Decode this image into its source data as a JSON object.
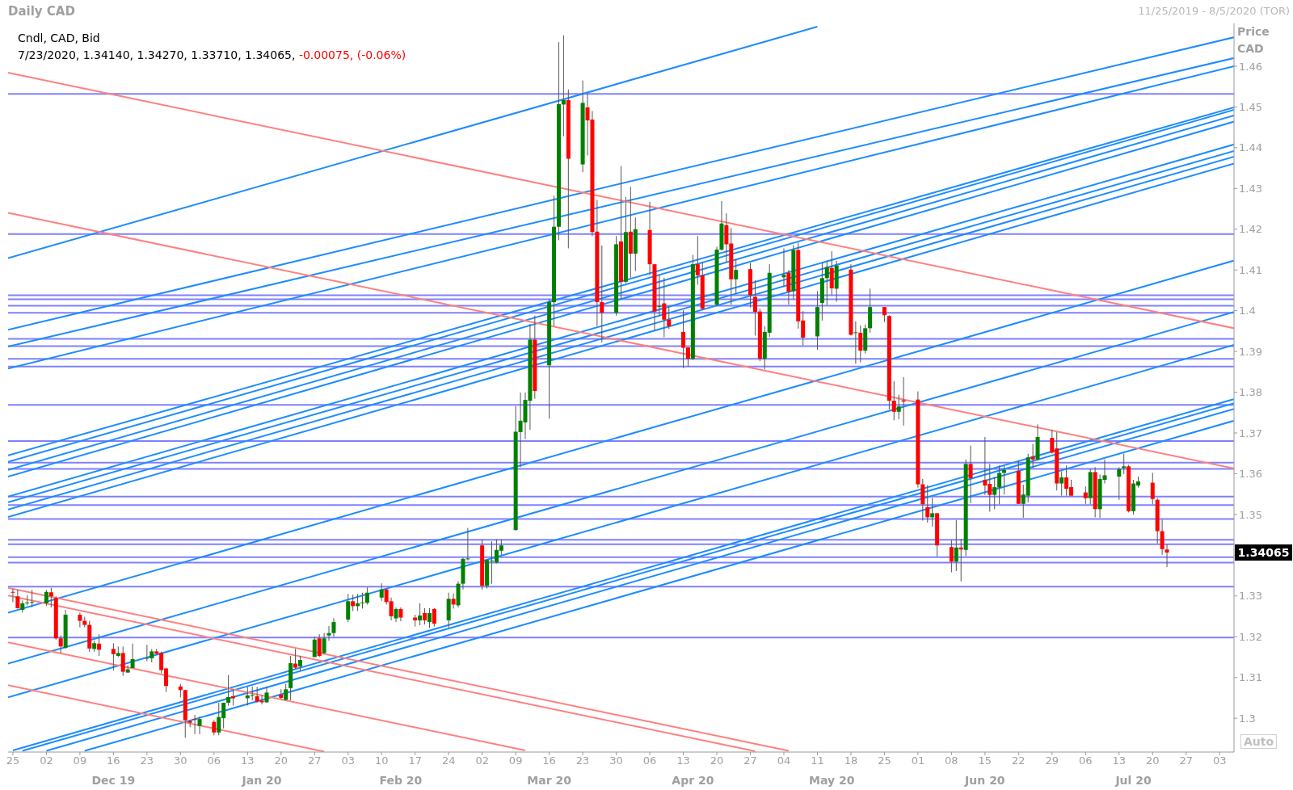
{
  "chart_data": {
    "type": "candlestick",
    "title": "Daily CAD",
    "subtitle": "11/25/2019 - 8/5/2020 (TOR)",
    "ylabel": "Price CAD",
    "annotations": [
      "Cndl, CAD, Bid",
      "7/23/2020, 1.34140, 1.34270, 1.33710, 1.34065,",
      "-0.00075, (-0.06%)",
      "Auto",
      "1.34065"
    ],
    "x": [
      "2019-11-25",
      "2019-11-26",
      "2019-11-27",
      "2019-11-28",
      "2019-11-29",
      "2019-12-02",
      "2019-12-03",
      "2019-12-04",
      "2019-12-05",
      "2019-12-06",
      "2019-12-09",
      "2019-12-10",
      "2019-12-11",
      "2019-12-12",
      "2019-12-13",
      "2019-12-16",
      "2019-12-17",
      "2019-12-18",
      "2019-12-19",
      "2019-12-20",
      "2019-12-23",
      "2019-12-24",
      "2019-12-25",
      "2019-12-26",
      "2019-12-27",
      "2019-12-30",
      "2019-12-31",
      "2020-01-01",
      "2020-01-02",
      "2020-01-03",
      "2020-01-06",
      "2020-01-07",
      "2020-01-08",
      "2020-01-09",
      "2020-01-10",
      "2020-01-13",
      "2020-01-14",
      "2020-01-15",
      "2020-01-16",
      "2020-01-17",
      "2020-01-20",
      "2020-01-21",
      "2020-01-22",
      "2020-01-23",
      "2020-01-24",
      "2020-01-27",
      "2020-01-28",
      "2020-01-29",
      "2020-01-30",
      "2020-01-31",
      "2020-02-03",
      "2020-02-04",
      "2020-02-05",
      "2020-02-06",
      "2020-02-07",
      "2020-02-10",
      "2020-02-11",
      "2020-02-12",
      "2020-02-13",
      "2020-02-14",
      "2020-02-17",
      "2020-02-18",
      "2020-02-19",
      "2020-02-20",
      "2020-02-21",
      "2020-02-24",
      "2020-02-25",
      "2020-02-26",
      "2020-02-27",
      "2020-02-28",
      "2020-03-02",
      "2020-03-03",
      "2020-03-04",
      "2020-03-05",
      "2020-03-06",
      "2020-03-09",
      "2020-03-10",
      "2020-03-11",
      "2020-03-12",
      "2020-03-13",
      "2020-03-16",
      "2020-03-17",
      "2020-03-18",
      "2020-03-19",
      "2020-03-20",
      "2020-03-23",
      "2020-03-24",
      "2020-03-25",
      "2020-03-26",
      "2020-03-27",
      "2020-03-30",
      "2020-03-31",
      "2020-04-01",
      "2020-04-02",
      "2020-04-03",
      "2020-04-06",
      "2020-04-07",
      "2020-04-08",
      "2020-04-09",
      "2020-04-10",
      "2020-04-13",
      "2020-04-14",
      "2020-04-15",
      "2020-04-16",
      "2020-04-17",
      "2020-04-20",
      "2020-04-21",
      "2020-04-22",
      "2020-04-23",
      "2020-04-24",
      "2020-04-27",
      "2020-04-28",
      "2020-04-29",
      "2020-04-30",
      "2020-05-01",
      "2020-05-04",
      "2020-05-05",
      "2020-05-06",
      "2020-05-07",
      "2020-05-08",
      "2020-05-11",
      "2020-05-12",
      "2020-05-13",
      "2020-05-14",
      "2020-05-15",
      "2020-05-18",
      "2020-05-19",
      "2020-05-20",
      "2020-05-21",
      "2020-05-22",
      "2020-05-25",
      "2020-05-26",
      "2020-05-27",
      "2020-05-28",
      "2020-05-29",
      "2020-06-01",
      "2020-06-02",
      "2020-06-03",
      "2020-06-04",
      "2020-06-05",
      "2020-06-08",
      "2020-06-09",
      "2020-06-10",
      "2020-06-11",
      "2020-06-12",
      "2020-06-15",
      "2020-06-16",
      "2020-06-17",
      "2020-06-18",
      "2020-06-19",
      "2020-06-22",
      "2020-06-23",
      "2020-06-24",
      "2020-06-25",
      "2020-06-26",
      "2020-06-29",
      "2020-06-30",
      "2020-07-01",
      "2020-07-02",
      "2020-07-03",
      "2020-07-06",
      "2020-07-07",
      "2020-07-08",
      "2020-07-09",
      "2020-07-10",
      "2020-07-13",
      "2020-07-14",
      "2020-07-15",
      "2020-07-16",
      "2020-07-17",
      "2020-07-20",
      "2020-07-21",
      "2020-07-22",
      "2020-07-23"
    ],
    "ohlc": [
      [
        1.331,
        1.3318,
        1.3285,
        1.3308
      ],
      [
        1.3299,
        1.3315,
        1.3269,
        1.327
      ],
      [
        1.3266,
        1.3289,
        1.3259,
        1.3282
      ],
      [
        1.3283,
        1.3302,
        1.3277,
        1.3284
      ],
      [
        1.3283,
        1.3315,
        1.3272,
        1.3285
      ],
      [
        1.3282,
        1.3315,
        1.3276,
        1.331
      ],
      [
        1.3309,
        1.332,
        1.3272,
        1.3299
      ],
      [
        1.3295,
        1.3299,
        1.3193,
        1.3196
      ],
      [
        1.3196,
        1.3203,
        1.316,
        1.3176
      ],
      [
        1.3173,
        1.3266,
        1.317,
        1.3254
      ],
      [
        1.3254,
        1.3259,
        1.3223,
        1.3239
      ],
      [
        1.3239,
        1.3249,
        1.3223,
        1.3229
      ],
      [
        1.3229,
        1.3239,
        1.3163,
        1.3171
      ],
      [
        1.317,
        1.319,
        1.3163,
        1.3184
      ],
      [
        1.3183,
        1.3206,
        1.3153,
        1.3168
      ],
      [
        1.317,
        1.3184,
        1.3117,
        1.3157
      ],
      [
        1.3153,
        1.3176,
        1.315,
        1.316
      ],
      [
        1.316,
        1.3176,
        1.3104,
        1.3114
      ],
      [
        1.3112,
        1.313,
        1.3112,
        1.312
      ],
      [
        1.3123,
        1.3183,
        1.3123,
        1.3145
      ],
      [
        1.3147,
        1.318,
        1.314,
        1.3148
      ],
      [
        1.3147,
        1.317,
        1.3137,
        1.3164
      ],
      [
        1.3164,
        1.317,
        1.3157,
        1.3158
      ],
      [
        1.316,
        1.3163,
        1.311,
        1.3118
      ],
      [
        1.3122,
        1.3124,
        1.3064,
        1.3079
      ],
      [
        1.3078,
        1.3084,
        1.3051,
        1.3069
      ],
      [
        1.3069,
        1.307,
        1.2952,
        1.2995
      ],
      [
        1.2993,
        1.2995,
        1.2978,
        1.2989
      ],
      [
        1.2998,
        1.3008,
        1.2961,
        1.2997
      ],
      [
        1.2981,
        1.3004,
        1.2961,
        1.2998
      ],
      [
        1.2991,
        1.2995,
        1.2958,
        1.2965
      ],
      [
        1.2965,
        1.3038,
        1.2958,
        1.3003
      ],
      [
        1.3,
        1.3038,
        1.2975,
        1.3038
      ],
      [
        1.3038,
        1.3106,
        1.3031,
        1.3052
      ],
      [
        1.3054,
        1.3071,
        1.3031,
        1.3049
      ],
      [
        1.3049,
        1.3077,
        1.3031,
        1.3056
      ],
      [
        1.3056,
        1.3078,
        1.3044,
        1.3057
      ],
      [
        1.3054,
        1.3077,
        1.3038,
        1.3041
      ],
      [
        1.3043,
        1.3057,
        1.3034,
        1.3039
      ],
      [
        1.3039,
        1.3077,
        1.3038,
        1.3063
      ],
      [
        1.3058,
        1.3071,
        1.3047,
        1.305
      ],
      [
        1.3045,
        1.3084,
        1.3045,
        1.3071
      ],
      [
        1.3074,
        1.3153,
        1.3044,
        1.3135
      ],
      [
        1.3134,
        1.317,
        1.3121,
        1.3124
      ],
      [
        1.3127,
        1.3153,
        1.3117,
        1.3143
      ],
      [
        1.315,
        1.32,
        1.315,
        1.3193
      ],
      [
        1.3196,
        1.3206,
        1.315,
        1.3153
      ],
      [
        1.316,
        1.3209,
        1.3157,
        1.3196
      ],
      [
        1.3203,
        1.3226,
        1.319,
        1.3209
      ],
      [
        1.3209,
        1.3245,
        1.32,
        1.3236
      ],
      [
        1.3242,
        1.3305,
        1.3236,
        1.3287
      ],
      [
        1.3287,
        1.3303,
        1.3263,
        1.3275
      ],
      [
        1.3275,
        1.3305,
        1.3263,
        1.3282
      ],
      [
        1.3283,
        1.3308,
        1.3269,
        1.3284
      ],
      [
        1.3283,
        1.3321,
        1.3279,
        1.3308
      ],
      [
        1.3296,
        1.3331,
        1.3288,
        1.3316
      ],
      [
        1.3316,
        1.3318,
        1.3279,
        1.3285
      ],
      [
        1.3287,
        1.3296,
        1.324,
        1.325
      ],
      [
        1.3245,
        1.3272,
        1.3236,
        1.3268
      ],
      [
        1.3268,
        1.3272,
        1.3238,
        1.3247
      ],
      [
        1.3247,
        1.3254,
        1.3225,
        1.324
      ],
      [
        1.324,
        1.3282,
        1.3228,
        1.3252
      ],
      [
        1.3258,
        1.327,
        1.323,
        1.324
      ],
      [
        1.3236,
        1.327,
        1.3222,
        1.3258
      ],
      [
        1.3268,
        1.327,
        1.3225,
        1.3232
      ],
      [
        1.324,
        1.3308,
        1.3222,
        1.3293
      ],
      [
        1.3293,
        1.3306,
        1.3269,
        1.3279
      ],
      [
        1.3277,
        1.3336,
        1.3272,
        1.333
      ],
      [
        1.333,
        1.3394,
        1.3316,
        1.3391
      ],
      [
        1.3391,
        1.3467,
        1.3387,
        1.3392
      ],
      [
        1.3424,
        1.3439,
        1.3315,
        1.3325
      ],
      [
        1.3325,
        1.339,
        1.3318,
        1.3388
      ],
      [
        1.3385,
        1.3434,
        1.333,
        1.3387
      ],
      [
        1.3382,
        1.3439,
        1.338,
        1.3413
      ],
      [
        1.3411,
        1.3439,
        1.3401,
        1.3424
      ],
      [
        1.3462,
        1.3766,
        1.346,
        1.3703
      ],
      [
        1.3702,
        1.3799,
        1.3616,
        1.373
      ],
      [
        1.3726,
        1.3799,
        1.3685,
        1.3781
      ],
      [
        1.3779,
        1.3968,
        1.3708,
        1.3929
      ],
      [
        1.3929,
        1.3988,
        1.3784,
        1.3803
      ],
      [
        1.3866,
        1.4028,
        1.3735,
        1.4021
      ],
      [
        1.4021,
        1.4282,
        1.3962,
        1.4206
      ],
      [
        1.4206,
        1.4659,
        1.4173,
        1.4507
      ],
      [
        1.4506,
        1.4676,
        1.4428,
        1.4517
      ],
      [
        1.4517,
        1.4543,
        1.4153,
        1.4373
      ],
      [
        1.4359,
        1.4565,
        1.434,
        1.451
      ],
      [
        1.4499,
        1.4533,
        1.4381,
        1.4467
      ],
      [
        1.4469,
        1.449,
        1.4183,
        1.4193
      ],
      [
        1.4194,
        1.4272,
        1.3962,
        1.4021
      ],
      [
        1.4021,
        1.416,
        1.3922,
        1.3995
      ],
      [
        1.3995,
        1.4183,
        1.3988,
        1.4163
      ],
      [
        1.417,
        1.4355,
        1.4028,
        1.4071
      ],
      [
        1.4071,
        1.4279,
        1.4067,
        1.4193
      ],
      [
        1.4194,
        1.4304,
        1.4081,
        1.414
      ],
      [
        1.414,
        1.4229,
        1.4097,
        1.42
      ],
      [
        1.4198,
        1.4267,
        1.4087,
        1.4114
      ],
      [
        1.4114,
        1.4115,
        1.3952,
        1.3998
      ],
      [
        1.401,
        1.4087,
        1.3988,
        1.4011
      ],
      [
        1.4018,
        1.4081,
        1.3935,
        1.3978
      ],
      [
        1.3978,
        1.4011,
        1.3955,
        1.3962
      ],
      [
        1.3948,
        1.4001,
        1.3859,
        1.3909
      ],
      [
        1.391,
        1.391,
        1.3863,
        1.3882
      ],
      [
        1.3882,
        1.4137,
        1.3879,
        1.4114
      ],
      [
        1.4114,
        1.4183,
        1.4064,
        1.4087
      ],
      [
        1.4087,
        1.412,
        1.4001,
        1.4005
      ],
      [
        1.4015,
        1.4157,
        1.4011,
        1.415
      ],
      [
        1.415,
        1.4269,
        1.4147,
        1.4214
      ],
      [
        1.421,
        1.4239,
        1.412,
        1.4163
      ],
      [
        1.4165,
        1.4203,
        1.4015,
        1.4077
      ],
      [
        1.4077,
        1.4127,
        1.4041,
        1.41
      ],
      [
        1.4102,
        1.4117,
        1.4008,
        1.4038
      ],
      [
        1.4034,
        1.4075,
        1.3939,
        1.3997
      ],
      [
        1.3998,
        1.4005,
        1.3876,
        1.3882
      ],
      [
        1.3882,
        1.3962,
        1.3856,
        1.3948
      ],
      [
        1.3946,
        1.4114,
        1.3936,
        1.4093
      ],
      [
        1.4082,
        1.4153,
        1.4058,
        1.4088
      ],
      [
        1.4093,
        1.41,
        1.4015,
        1.4047
      ],
      [
        1.4048,
        1.4161,
        1.4029,
        1.4149
      ],
      [
        1.4149,
        1.4167,
        1.3956,
        1.3974
      ],
      [
        1.3976,
        1.3999,
        1.3915,
        1.3934
      ],
      [
        1.3937,
        1.4048,
        1.3904,
        1.4009
      ],
      [
        1.4019,
        1.4118,
        1.3976,
        1.408
      ],
      [
        1.408,
        1.412,
        1.4014,
        1.4107
      ],
      [
        1.4105,
        1.4146,
        1.4038,
        1.4055
      ],
      [
        1.4054,
        1.4122,
        1.4022,
        1.4111
      ],
      [
        1.4101,
        1.4114,
        1.3939,
        1.3941
      ],
      [
        1.3945,
        1.3974,
        1.387,
        1.3947
      ],
      [
        1.3946,
        1.3964,
        1.3873,
        1.3902
      ],
      [
        1.3902,
        1.3966,
        1.3895,
        1.3957
      ],
      [
        1.3957,
        1.4054,
        1.3946,
        1.4009
      ],
      [
        1.4009,
        1.4009,
        1.3972,
        1.3989
      ],
      [
        1.3987,
        1.3989,
        1.3758,
        1.3779
      ],
      [
        1.3779,
        1.3827,
        1.3731,
        1.3752
      ],
      [
        1.3752,
        1.3794,
        1.3734,
        1.3765
      ],
      [
        1.378,
        1.3837,
        1.3718,
        1.3777
      ],
      [
        1.3782,
        1.3802,
        1.3566,
        1.3574
      ],
      [
        1.3574,
        1.3587,
        1.3485,
        1.3525
      ],
      [
        1.3518,
        1.3572,
        1.348,
        1.3493
      ],
      [
        1.3493,
        1.3541,
        1.347,
        1.3503
      ],
      [
        1.3503,
        1.3503,
        1.3397,
        1.3424
      ],
      [
        1.342,
        1.3437,
        1.3358,
        1.3384
      ],
      [
        1.3384,
        1.3486,
        1.3361,
        1.3419
      ],
      [
        1.3419,
        1.344,
        1.3336,
        1.3414
      ],
      [
        1.3413,
        1.3635,
        1.3398,
        1.3624
      ],
      [
        1.3624,
        1.3669,
        1.3528,
        1.3589
      ],
      [
        1.3585,
        1.369,
        1.3548,
        1.3571
      ],
      [
        1.3575,
        1.3624,
        1.3507,
        1.3548
      ],
      [
        1.3548,
        1.3592,
        1.3513,
        1.3567
      ],
      [
        1.3566,
        1.362,
        1.3525,
        1.3602
      ],
      [
        1.3602,
        1.362,
        1.3549,
        1.3609
      ],
      [
        1.3607,
        1.3632,
        1.3526,
        1.3526
      ],
      [
        1.3526,
        1.3573,
        1.3492,
        1.3549
      ],
      [
        1.3546,
        1.3649,
        1.353,
        1.364
      ],
      [
        1.3642,
        1.3673,
        1.3614,
        1.3635
      ],
      [
        1.3635,
        1.3721,
        1.3632,
        1.369
      ],
      [
        1.3688,
        1.3708,
        1.3649,
        1.3652
      ],
      [
        1.3662,
        1.3702,
        1.3559,
        1.3576
      ],
      [
        1.3576,
        1.3606,
        1.3546,
        1.3591
      ],
      [
        1.3591,
        1.362,
        1.3546,
        1.3563
      ],
      [
        1.3567,
        1.3585,
        1.3546,
        1.3546
      ],
      [
        1.3554,
        1.3569,
        1.3525,
        1.354
      ],
      [
        1.354,
        1.3612,
        1.3525,
        1.3604
      ],
      [
        1.3604,
        1.3616,
        1.3493,
        1.3513
      ],
      [
        1.3513,
        1.3598,
        1.3492,
        1.3587
      ],
      [
        1.3585,
        1.3635,
        1.3576,
        1.3596
      ],
      [
        1.3593,
        1.3616,
        1.3536,
        1.3611
      ],
      [
        1.3614,
        1.3649,
        1.3599,
        1.3618
      ],
      [
        1.3618,
        1.3622,
        1.3505,
        1.3508
      ],
      [
        1.3508,
        1.3585,
        1.35,
        1.3576
      ],
      [
        1.3571,
        1.3593,
        1.3566,
        1.3581
      ],
      [
        1.3578,
        1.3602,
        1.3525,
        1.3538
      ],
      [
        1.3536,
        1.354,
        1.3429,
        1.3459
      ],
      [
        1.3459,
        1.3487,
        1.3401,
        1.3415
      ],
      [
        1.3414,
        1.3427,
        1.3371,
        1.34065
      ]
    ],
    "colors": [
      "#ff0000",
      "#ff0000",
      "#008000",
      "#008000",
      "#008000",
      "#008000",
      "#ff0000",
      "#ff0000",
      "#ff0000",
      "#008000",
      "#ff0000",
      "#ff0000",
      "#ff0000",
      "#008000",
      "#ff0000",
      "#ff0000",
      "#008000",
      "#ff0000",
      "#008000",
      "#008000",
      "#008000",
      "#008000",
      "#ff0000",
      "#ff0000",
      "#ff0000",
      "#ff0000",
      "#ff0000",
      "#ff0000",
      "#ff0000",
      "#008000",
      "#ff0000",
      "#008000",
      "#008000",
      "#008000",
      "#ff0000",
      "#008000",
      "#008000",
      "#ff0000",
      "#ff0000",
      "#008000",
      "#ff0000",
      "#008000",
      "#008000",
      "#ff0000",
      "#008000",
      "#008000",
      "#ff0000",
      "#008000",
      "#008000",
      "#008000",
      "#008000",
      "#ff0000",
      "#008000",
      "#008000",
      "#008000",
      "#008000",
      "#ff0000",
      "#ff0000",
      "#008000",
      "#ff0000",
      "#ff0000",
      "#008000",
      "#ff0000",
      "#008000",
      "#ff0000",
      "#008000",
      "#ff0000",
      "#008000",
      "#008000",
      "#008000",
      "#ff0000",
      "#008000",
      "#008000",
      "#008000",
      "#008000",
      "#008000",
      "#008000",
      "#008000",
      "#008000",
      "#ff0000",
      "#008000",
      "#008000",
      "#008000",
      "#008000",
      "#ff0000",
      "#008000",
      "#ff0000",
      "#ff0000",
      "#ff0000",
      "#ff0000",
      "#008000",
      "#ff0000",
      "#008000",
      "#ff0000",
      "#008000",
      "#ff0000",
      "#ff0000",
      "#008000",
      "#ff0000",
      "#ff0000",
      "#ff0000",
      "#ff0000",
      "#008000",
      "#ff0000",
      "#ff0000",
      "#008000",
      "#008000",
      "#ff0000",
      "#ff0000",
      "#008000",
      "#ff0000",
      "#ff0000",
      "#ff0000",
      "#008000",
      "#008000",
      "#008000",
      "#ff0000",
      "#008000",
      "#ff0000",
      "#ff0000",
      "#008000",
      "#008000",
      "#008000",
      "#ff0000",
      "#008000",
      "#ff0000",
      "#008000",
      "#ff0000",
      "#008000",
      "#008000",
      "#ff0000",
      "#ff0000",
      "#ff0000",
      "#008000",
      "#ff0000",
      "#ff0000",
      "#ff0000",
      "#ff0000",
      "#008000",
      "#ff0000",
      "#ff0000",
      "#008000",
      "#ff0000",
      "#008000",
      "#ff0000",
      "#ff0000",
      "#ff0000",
      "#008000",
      "#008000",
      "#008000",
      "#ff0000",
      "#008000",
      "#008000",
      "#ff0000",
      "#008000",
      "#ff0000",
      "#ff0000",
      "#008000",
      "#ff0000",
      "#ff0000",
      "#ff0000",
      "#008000",
      "#ff0000",
      "#008000",
      "#008000",
      "#008000",
      "#008000",
      "#ff0000",
      "#008000",
      "#008000",
      "#ff0000",
      "#ff0000",
      "#ff0000",
      "#ff0000"
    ],
    "xlim": [
      "2019-11-24",
      "2020-08-06"
    ],
    "x2lim": [
      "2019-11-24",
      "2020-08-06"
    ],
    "xticks": [
      {
        "value": "2019-11-25",
        "label": "25"
      },
      {
        "value": "2019-12-02",
        "label": "02"
      },
      {
        "value": "2019-12-09",
        "label": "09"
      },
      {
        "value": "2019-12-16",
        "label": "16"
      },
      {
        "value": "2019-12-23",
        "label": "23"
      },
      {
        "value": "2019-12-30",
        "label": "30"
      },
      {
        "value": "2020-01-06",
        "label": "06"
      },
      {
        "value": "2020-01-13",
        "label": "13"
      },
      {
        "value": "2020-01-20",
        "label": "20"
      },
      {
        "value": "2020-01-27",
        "label": "27"
      },
      {
        "value": "2020-02-03",
        "label": "03"
      },
      {
        "value": "2020-02-10",
        "label": "10"
      },
      {
        "value": "2020-02-17",
        "label": "17"
      },
      {
        "value": "2020-02-24",
        "label": "24"
      },
      {
        "value": "2020-03-02",
        "label": "02"
      },
      {
        "value": "2020-03-09",
        "label": "09"
      },
      {
        "value": "2020-03-16",
        "label": "16"
      },
      {
        "value": "2020-03-23",
        "label": "23"
      },
      {
        "value": "2020-03-30",
        "label": "30"
      },
      {
        "value": "2020-04-06",
        "label": "06"
      },
      {
        "value": "2020-04-13",
        "label": "13"
      },
      {
        "value": "2020-04-20",
        "label": "20"
      },
      {
        "value": "2020-04-27",
        "label": "27"
      },
      {
        "value": "2020-05-04",
        "label": "04"
      },
      {
        "value": "2020-05-11",
        "label": "11"
      },
      {
        "value": "2020-05-18",
        "label": "18"
      },
      {
        "value": "2020-05-25",
        "label": "25"
      },
      {
        "value": "2020-06-01",
        "label": "01"
      },
      {
        "value": "2020-06-08",
        "label": "08"
      },
      {
        "value": "2020-06-15",
        "label": "15"
      },
      {
        "value": "2020-06-22",
        "label": "22"
      },
      {
        "value": "2020-06-29",
        "label": "29"
      },
      {
        "value": "2020-07-06",
        "label": "06"
      },
      {
        "value": "2020-07-13",
        "label": "13"
      },
      {
        "value": "2020-07-20",
        "label": "20"
      },
      {
        "value": "2020-07-27",
        "label": "27"
      },
      {
        "value": "2020-08-03",
        "label": "03"
      }
    ],
    "x2ticks": [
      {
        "value": "2019-12-16",
        "label": "Dec 19"
      },
      {
        "value": "2020-01-16",
        "label": "Jan 20"
      },
      {
        "value": "2020-02-14",
        "label": "Feb 20"
      },
      {
        "value": "2020-03-16",
        "label": "Mar 20"
      },
      {
        "value": "2020-04-15",
        "label": "Apr 20"
      },
      {
        "value": "2020-05-14",
        "label": "May 20"
      },
      {
        "value": "2020-06-15",
        "label": "Jun 20"
      },
      {
        "value": "2020-07-16",
        "label": "Jul 20"
      }
    ],
    "ylim": [
      1.2917,
      1.4705
    ],
    "yticks": [
      1.3,
      1.31,
      1.32,
      1.33,
      {
        "value": 1.34,
        "label": null
      },
      1.35,
      1.36,
      1.37,
      1.38,
      1.39,
      1.4,
      1.41,
      1.42,
      1.43,
      1.44,
      1.45,
      1.46
    ],
    "ref_lines": [
      {
        "axis": "y",
        "value": 1.4532,
        "color": "#8080ff"
      },
      {
        "axis": "y",
        "value": 1.4188,
        "color": "#8080ff"
      },
      {
        "axis": "y",
        "value": 1.4038,
        "color": "#8080ff"
      },
      {
        "axis": "y",
        "value": 1.4028,
        "color": "#8080ff"
      },
      {
        "axis": "y",
        "value": 1.4012,
        "color": "#8080ff"
      },
      {
        "axis": "y",
        "value": 1.3995,
        "color": "#8080ff"
      },
      {
        "axis": "y",
        "value": 1.3931,
        "color": "#8080ff"
      },
      {
        "axis": "y",
        "value": 1.3913,
        "color": "#8080ff"
      },
      {
        "axis": "y",
        "value": 1.3882,
        "color": "#8080ff"
      },
      {
        "axis": "y",
        "value": 1.3863,
        "color": "#8080ff"
      },
      {
        "axis": "y",
        "value": 1.3769,
        "color": "#8080ff"
      },
      {
        "axis": "y",
        "value": 1.368,
        "color": "#8080ff"
      },
      {
        "axis": "y",
        "value": 1.3627,
        "color": "#8080ff"
      },
      {
        "axis": "y",
        "value": 1.3612,
        "color": "#8080ff"
      },
      {
        "axis": "y",
        "value": 1.3544,
        "color": "#8080ff"
      },
      {
        "axis": "y",
        "value": 1.3523,
        "color": "#8080ff"
      },
      {
        "axis": "y",
        "value": 1.3489,
        "color": "#8080ff"
      },
      {
        "axis": "y",
        "value": 1.3438,
        "color": "#8080ff"
      },
      {
        "axis": "y",
        "value": 1.3427,
        "color": "#8080ff"
      },
      {
        "axis": "y",
        "value": 1.3395,
        "color": "#8080ff"
      },
      {
        "axis": "y",
        "value": 1.3382,
        "color": "#8080ff"
      },
      {
        "axis": "y",
        "value": 1.3323,
        "color": "#8080ff"
      },
      {
        "axis": "y",
        "value": 1.3198,
        "color": "#8080ff"
      }
    ],
    "series": [
      {
        "type": "line",
        "color": "#1e8cff",
        "x": [
          "2019-11-24",
          "2020-05-11"
        ],
        "values": [
          1.4129,
          1.4697
        ]
      },
      {
        "type": "line",
        "color": "#1e8cff",
        "x": [
          "2019-11-24",
          "2020-08-06"
        ],
        "values": [
          1.3953,
          1.4671
        ]
      },
      {
        "type": "line",
        "color": "#1e8cff",
        "x": [
          "2019-11-24",
          "2020-08-06"
        ],
        "values": [
          1.3912,
          1.462
        ]
      },
      {
        "type": "line",
        "color": "#1e8cff",
        "x": [
          "2019-11-24",
          "2020-08-06"
        ],
        "values": [
          1.3858,
          1.46
        ]
      },
      {
        "type": "line",
        "color": "#1e8cff",
        "x": [
          "2019-11-24",
          "2020-08-06"
        ],
        "values": [
          1.3645,
          1.4499
        ]
      },
      {
        "type": "line",
        "color": "#1e8cff",
        "x": [
          "2019-11-24",
          "2020-08-06"
        ],
        "values": [
          1.3629,
          1.4493
        ]
      },
      {
        "type": "line",
        "color": "#1e8cff",
        "x": [
          "2019-11-24",
          "2020-08-06"
        ],
        "values": [
          1.3609,
          1.4479
        ]
      },
      {
        "type": "line",
        "color": "#1e8cff",
        "x": [
          "2019-11-24",
          "2020-08-06"
        ],
        "values": [
          1.3593,
          1.4464
        ]
      },
      {
        "type": "line",
        "color": "#1e8cff",
        "x": [
          "2019-11-24",
          "2020-08-06"
        ],
        "values": [
          1.3544,
          1.4408
        ]
      },
      {
        "type": "line",
        "color": "#1e8cff",
        "x": [
          "2019-11-24",
          "2020-08-06"
        ],
        "values": [
          1.353,
          1.4392
        ]
      },
      {
        "type": "line",
        "color": "#1e8cff",
        "x": [
          "2019-11-24",
          "2020-08-06"
        ],
        "values": [
          1.3512,
          1.4378
        ]
      },
      {
        "type": "line",
        "color": "#1e8cff",
        "x": [
          "2019-11-24",
          "2020-08-06"
        ],
        "values": [
          1.3494,
          1.4361
        ]
      },
      {
        "type": "line",
        "color": "#1e8cff",
        "x": [
          "2019-11-24",
          "2020-08-06"
        ],
        "values": [
          1.3259,
          1.4123
        ]
      },
      {
        "type": "line",
        "color": "#1e8cff",
        "x": [
          "2019-11-24",
          "2020-08-06"
        ],
        "values": [
          1.3134,
          1.3997
        ]
      },
      {
        "type": "line",
        "color": "#1e8cff",
        "x": [
          "2019-11-24",
          "2020-08-06"
        ],
        "values": [
          1.3051,
          1.3916
        ]
      },
      {
        "type": "line",
        "color": "#1e8cff",
        "x": [
          "2019-11-25",
          "2020-08-06"
        ],
        "values": [
          1.2921,
          1.3783
        ]
      },
      {
        "type": "line",
        "color": "#1e8cff",
        "x": [
          "2019-11-27",
          "2020-08-06"
        ],
        "values": [
          1.292,
          1.3773
        ]
      },
      {
        "type": "line",
        "color": "#1e8cff",
        "x": [
          "2019-12-02",
          "2020-08-06"
        ],
        "values": [
          1.292,
          1.3759
        ]
      },
      {
        "type": "line",
        "color": "#1e8cff",
        "x": [
          "2019-12-10",
          "2020-08-06"
        ],
        "values": [
          1.292,
          1.373
        ]
      },
      {
        "type": "line",
        "color": "#ff8080",
        "x": [
          "2019-11-24",
          "2020-08-06"
        ],
        "values": [
          1.4584,
          1.3957
        ]
      },
      {
        "type": "line",
        "color": "#ff8080",
        "x": [
          "2019-11-24",
          "2020-08-06"
        ],
        "values": [
          1.424,
          1.3613
        ]
      },
      {
        "type": "line",
        "color": "#ff8080",
        "x": [
          "2019-11-24",
          "2020-05-05"
        ],
        "values": [
          1.332,
          1.292
        ]
      },
      {
        "type": "line",
        "color": "#ff8080",
        "x": [
          "2019-11-24",
          "2020-04-28"
        ],
        "values": [
          1.3301,
          1.2919
        ]
      },
      {
        "type": "line",
        "color": "#ff8080",
        "x": [
          "2019-11-24",
          "2020-03-11"
        ],
        "values": [
          1.3186,
          1.2921
        ]
      },
      {
        "type": "line",
        "color": "#ff8080",
        "x": [
          "2019-11-24",
          "2020-01-29"
        ],
        "values": [
          1.3081,
          1.2918
        ]
      }
    ]
  }
}
